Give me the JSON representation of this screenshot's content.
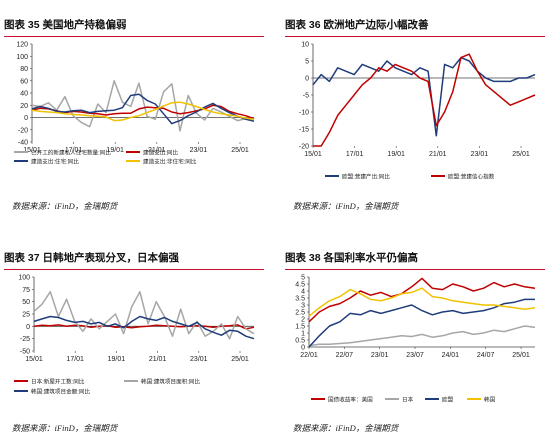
{
  "chart_data": [
    {
      "type": "line",
      "title": "图表 35 美国地产持稳偏弱",
      "source": "数据来源：iFinD，金瑞期货",
      "x_ticks": [
        "15/01",
        "17/01",
        "19/01",
        "21/01",
        "23/01",
        "25/01"
      ],
      "ylim": [
        -40,
        120
      ],
      "y_ticks": [
        -40,
        -20,
        0,
        20,
        40,
        60,
        80,
        100,
        120
      ],
      "series": [
        {
          "name": "已开工的新建私人住宅数量:同比",
          "color": "#a6a6a6",
          "values": [
            20,
            18,
            24,
            12,
            34,
            3,
            -8,
            -15,
            22,
            8,
            60,
            25,
            18,
            56,
            2,
            -3,
            42,
            55,
            -22,
            36,
            7,
            -4,
            15,
            9,
            2,
            -5,
            -2,
            -6
          ]
        },
        {
          "name": "建造支出:同比",
          "color": "#c00000",
          "values": [
            12,
            15,
            14,
            11,
            8,
            10,
            9,
            7,
            6,
            4,
            6,
            7,
            7,
            14,
            17,
            16,
            15,
            9,
            6,
            8,
            11,
            14,
            20,
            18,
            10,
            6,
            3,
            -2
          ]
        },
        {
          "name": "建造支出:住宅:同比",
          "color": "#1f3d7a",
          "values": [
            14,
            18,
            15,
            10,
            9,
            11,
            12,
            8,
            10,
            11,
            12,
            16,
            36,
            38,
            28,
            22,
            6,
            -10,
            -5,
            3,
            9,
            17,
            23,
            15,
            8,
            2,
            -3,
            -6
          ]
        },
        {
          "name": "建造支出:非住宅:同比",
          "color": "#f2c200",
          "values": [
            12,
            10,
            9,
            8,
            6,
            5,
            4,
            3,
            2,
            1,
            -5,
            -4,
            0,
            3,
            8,
            13,
            19,
            24,
            25,
            22,
            18,
            13,
            9,
            6,
            4,
            2,
            -1,
            -3
          ]
        }
      ]
    },
    {
      "type": "line",
      "title": "图表 36 欧洲地产边际小幅改善",
      "source": "数据来源：iFinD，金瑞期货",
      "x_ticks": [
        "15/01",
        "17/01",
        "19/01",
        "21/01",
        "23/01",
        "25/01"
      ],
      "ylim": [
        -20,
        10
      ],
      "y_ticks": [
        -20,
        -15,
        -10,
        -5,
        0,
        5,
        10
      ],
      "series": [
        {
          "name": "欧盟:营建产出:同比",
          "color": "#1f3d7a",
          "values": [
            -2,
            1,
            -1,
            3,
            2,
            1,
            4,
            3,
            2,
            5,
            3,
            2,
            1,
            3,
            2,
            -17,
            4,
            3,
            6,
            5,
            2,
            0,
            -1,
            -1,
            -1,
            0,
            0,
            1
          ]
        },
        {
          "name": "欧盟:营建信心指数",
          "color": "#c00000",
          "values": [
            -20,
            -20,
            -16,
            -11,
            -8,
            -5,
            -2,
            0,
            3,
            2,
            4,
            3,
            2,
            0,
            -1,
            -14,
            -10,
            -4,
            6,
            7,
            2,
            -2,
            -4,
            -6,
            -8,
            -7,
            -6,
            -5
          ]
        }
      ]
    },
    {
      "type": "line",
      "title": "图表 37 日韩地产表现分叉，日本偏强",
      "source": "数据来源：iFinD，金瑞期货",
      "x_ticks": [
        "15/01",
        "17/01",
        "19/01",
        "21/01",
        "23/01",
        "25/01"
      ],
      "ylim": [
        -50,
        100
      ],
      "y_ticks": [
        -50,
        -25,
        0,
        25,
        50,
        75,
        100
      ],
      "series": [
        {
          "name": "日本:新屋开工数:同比",
          "color": "#c00000",
          "values": [
            0,
            2,
            1,
            3,
            0,
            2,
            1,
            -2,
            0,
            1,
            -2,
            -1,
            -3,
            -1,
            0,
            2,
            1,
            0,
            -1,
            0,
            1,
            0,
            -2,
            0,
            1,
            3,
            -5,
            -2
          ]
        },
        {
          "name": "韩国:建筑项目面积:同比",
          "color": "#a6a6a6",
          "values": [
            30,
            45,
            70,
            20,
            55,
            10,
            -10,
            15,
            -5,
            10,
            25,
            -15,
            40,
            70,
            5,
            50,
            20,
            -20,
            35,
            -15,
            10,
            -20,
            -10,
            5,
            -25,
            20,
            -5,
            -15
          ]
        },
        {
          "name": "韩国:建筑项目金额:同比",
          "color": "#1f3d7a",
          "values": [
            10,
            15,
            20,
            18,
            12,
            8,
            10,
            5,
            8,
            0,
            5,
            -3,
            10,
            20,
            15,
            12,
            18,
            10,
            5,
            0,
            8,
            -5,
            -12,
            -18,
            -8,
            -10,
            -20,
            -25
          ]
        }
      ]
    },
    {
      "type": "line",
      "title": "图表 38 各国利率水平仍偏高",
      "source": "数据来源：iFinD，金瑞期货",
      "x_ticks": [
        "22/01",
        "22/07",
        "23/01",
        "23/07",
        "24/01",
        "24/07",
        "25/01"
      ],
      "ylim": [
        0,
        5
      ],
      "y_ticks": [
        0,
        0.5,
        1,
        1.5,
        2,
        2.5,
        3,
        3.5,
        4,
        4.5,
        5
      ],
      "series": [
        {
          "name": "国债收益率：美国",
          "color": "#c00000",
          "values": [
            1.8,
            2.5,
            2.9,
            3.1,
            3.5,
            4.0,
            3.7,
            3.9,
            3.6,
            3.8,
            4.3,
            4.9,
            4.2,
            4.1,
            4.5,
            4.3,
            4.0,
            4.2,
            4.6,
            4.3,
            4.5,
            4.3,
            4.2
          ]
        },
        {
          "name": "日本",
          "color": "#a6a6a6",
          "values": [
            0.1,
            0.2,
            0.2,
            0.25,
            0.3,
            0.4,
            0.5,
            0.6,
            0.7,
            0.8,
            0.75,
            0.9,
            0.7,
            0.8,
            1.0,
            1.1,
            0.9,
            1.0,
            1.2,
            1.1,
            1.3,
            1.5,
            1.4
          ]
        },
        {
          "name": "欧盟",
          "color": "#1f3d7a",
          "values": [
            0.0,
            0.8,
            1.5,
            1.8,
            2.4,
            2.3,
            2.6,
            2.4,
            2.6,
            2.8,
            3.0,
            2.6,
            2.3,
            2.5,
            2.6,
            2.4,
            2.5,
            2.6,
            2.8,
            3.1,
            3.2,
            3.4,
            3.4
          ]
        },
        {
          "name": "韩国",
          "color": "#f2c200",
          "values": [
            2.2,
            2.8,
            3.3,
            3.6,
            4.1,
            3.8,
            3.4,
            3.3,
            3.5,
            3.8,
            3.9,
            4.2,
            3.6,
            3.5,
            3.3,
            3.2,
            3.1,
            3.0,
            3.0,
            2.9,
            2.8,
            2.7,
            2.8
          ]
        }
      ]
    }
  ]
}
